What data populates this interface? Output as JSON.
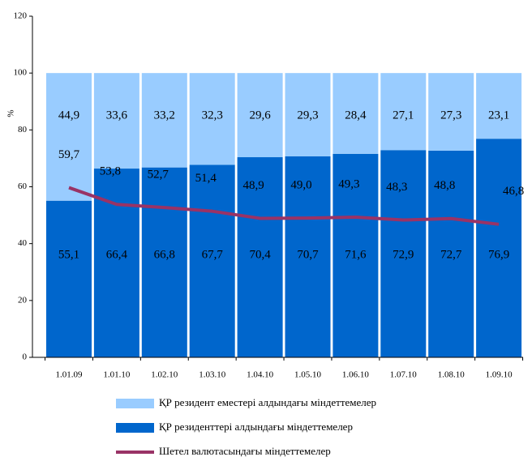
{
  "chart_data": {
    "type": "stacked-bar-line",
    "y_label": "%",
    "categories": [
      "1.01.09",
      "1.01.10",
      "1.02.10",
      "1.03.10",
      "1.04.10",
      "1.05.10",
      "1.06.10",
      "1.07.10",
      "1.08.10",
      "1.09.10"
    ],
    "series": [
      {
        "name": "ҚР резидент еместері алдындағы міндеттемелер",
        "type": "bar",
        "color": "#99ccff",
        "values": [
          44.9,
          33.6,
          33.2,
          32.3,
          29.6,
          29.3,
          28.4,
          27.1,
          27.3,
          23.1
        ],
        "value_labels": [
          "44,9",
          "33,6",
          "33,2",
          "32,3",
          "29,6",
          "29,3",
          "28,4",
          "27,1",
          "27,3",
          "23,1"
        ]
      },
      {
        "name": "ҚР резиденттері алдындағы міндеттемелер",
        "type": "bar",
        "color": "#0066cc",
        "values": [
          55.1,
          66.4,
          66.8,
          67.7,
          70.4,
          70.7,
          71.6,
          72.9,
          72.7,
          76.9
        ],
        "value_labels": [
          "55,1",
          "66,4",
          "66,8",
          "67,7",
          "70,4",
          "70,7",
          "71,6",
          "72,9",
          "72,7",
          "76,9"
        ]
      },
      {
        "name": "Шетел валютасындағы міндеттемелер",
        "type": "line",
        "color": "#993366",
        "values": [
          59.7,
          53.8,
          52.7,
          51.4,
          48.9,
          49.0,
          49.3,
          48.3,
          48.8,
          46.8
        ],
        "value_labels": [
          "59,7",
          "53,8",
          "52,7",
          "51,4",
          "48,9",
          "49,0",
          "49,3",
          "48,3",
          "48,8",
          "46,8"
        ]
      }
    ],
    "ylim": [
      0,
      120
    ],
    "yticks": [
      0,
      20,
      40,
      60,
      80,
      100,
      120
    ]
  }
}
